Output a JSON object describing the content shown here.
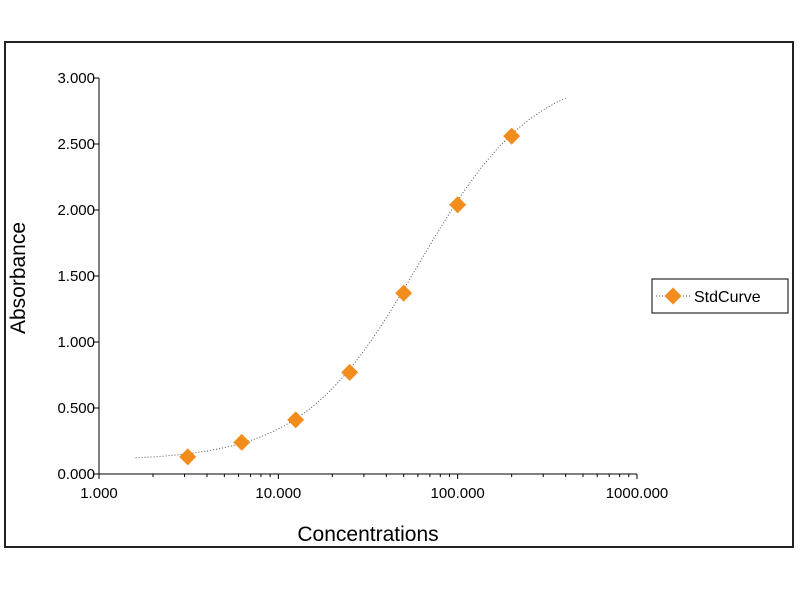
{
  "chart_data": {
    "type": "scatter",
    "title": "",
    "xlabel": "Concentrations",
    "ylabel": "Absorbance",
    "x_scale": "log",
    "xlim": [
      1,
      1000
    ],
    "ylim": [
      0,
      3
    ],
    "x_ticks": [
      1,
      10,
      100,
      1000
    ],
    "x_tick_labels": [
      "1.000",
      "10.000",
      "100.000",
      "1000.000"
    ],
    "y_ticks": [
      0,
      0.5,
      1,
      1.5,
      2,
      2.5,
      3
    ],
    "y_tick_labels": [
      "0.000",
      "0.500",
      "1.000",
      "1.500",
      "2.000",
      "2.500",
      "3.000"
    ],
    "grid": false,
    "legend_position": "right",
    "series": [
      {
        "name": "StdCurve",
        "color": "#f28c1c",
        "marker": "diamond",
        "x": [
          3.125,
          6.25,
          12.5,
          25,
          50,
          100,
          200
        ],
        "y": [
          0.13,
          0.24,
          0.41,
          0.77,
          1.37,
          2.04,
          2.56
        ]
      }
    ],
    "fit_curve": {
      "style": "dotted",
      "color": "#555555",
      "x_range": [
        1.6,
        400
      ],
      "four_pl": {
        "bottom": 0.1,
        "top": 3.06,
        "ec50": 60,
        "hill": 1.35
      }
    }
  }
}
